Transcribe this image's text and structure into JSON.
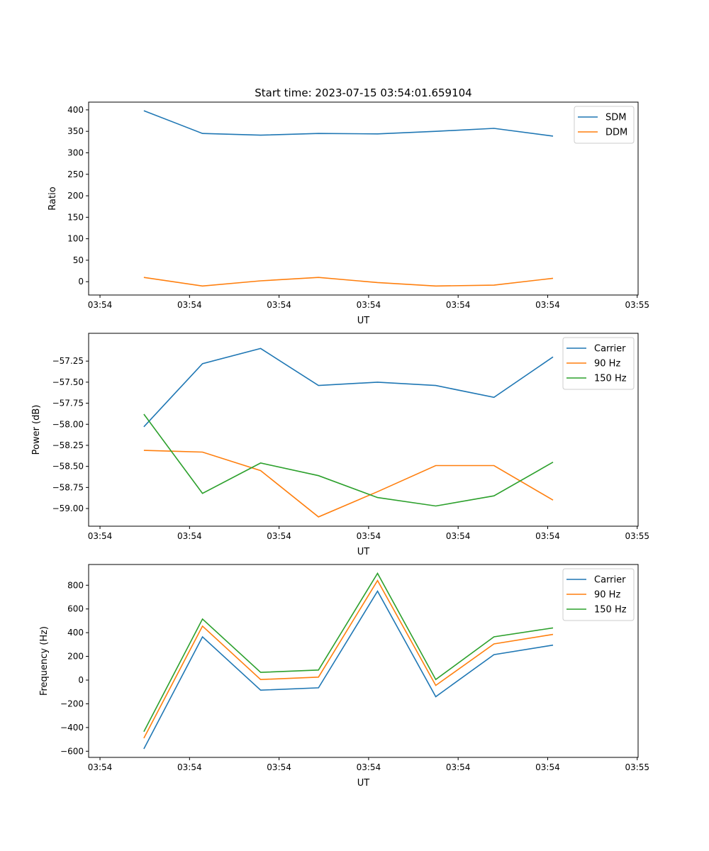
{
  "chart_data": [
    {
      "type": "line",
      "title": "Start time: 2023-07-15 03:54:01.659104",
      "xlabel": "UT",
      "ylabel": "Ratio",
      "x_unit": "seconds after 03:54:00",
      "xlim": [
        -1.27,
        60.1
      ],
      "ylim": [
        -31,
        418
      ],
      "xticks": [
        0,
        10,
        20,
        30,
        40,
        50,
        60
      ],
      "xtick_labels": [
        "03:54",
        "03:54",
        "03:54",
        "03:54",
        "03:54",
        "03:54",
        "03:55"
      ],
      "yticks": [
        0,
        50,
        100,
        150,
        200,
        250,
        300,
        350,
        400
      ],
      "ytick_labels": [
        "0",
        "50",
        "100",
        "150",
        "200",
        "250",
        "300",
        "350",
        "400"
      ],
      "legend_position": "top-right",
      "x": [
        4.9,
        11.45,
        17.94,
        24.4,
        31.0,
        37.5,
        44.0,
        50.6
      ],
      "series": [
        {
          "name": "SDM",
          "color": "#1f77b4",
          "values": [
            398,
            345,
            341,
            345,
            344,
            350,
            357,
            339
          ]
        },
        {
          "name": "DDM",
          "color": "#ff7f0e",
          "values": [
            10,
            -10,
            2,
            10,
            -2,
            -10,
            -8,
            8
          ]
        }
      ]
    },
    {
      "type": "line",
      "title": "",
      "xlabel": "UT",
      "ylabel": "Power (dB)",
      "x_unit": "seconds after 03:54:00",
      "xlim": [
        -1.27,
        60.1
      ],
      "ylim": [
        -59.21,
        -56.92
      ],
      "xticks": [
        0,
        10,
        20,
        30,
        40,
        50,
        60
      ],
      "xtick_labels": [
        "03:54",
        "03:54",
        "03:54",
        "03:54",
        "03:54",
        "03:54",
        "03:55"
      ],
      "yticks": [
        -59.0,
        -58.75,
        -58.5,
        -58.25,
        -58.0,
        -57.75,
        -57.5,
        -57.25
      ],
      "ytick_labels": [
        "−59.00",
        "−58.75",
        "−58.50",
        "−58.25",
        "−58.00",
        "−57.75",
        "−57.50",
        "−57.25"
      ],
      "legend_position": "top-right",
      "x": [
        4.9,
        11.45,
        17.94,
        24.4,
        31.0,
        37.5,
        44.0,
        50.6
      ],
      "series": [
        {
          "name": "Carrier",
          "color": "#1f77b4",
          "values": [
            -58.03,
            -57.28,
            -57.1,
            -57.54,
            -57.5,
            -57.54,
            -57.68,
            -57.2
          ]
        },
        {
          "name": "90 Hz",
          "color": "#ff7f0e",
          "values": [
            -58.31,
            -58.33,
            -58.55,
            -59.1,
            -58.8,
            -58.49,
            -58.49,
            -58.9
          ]
        },
        {
          "name": "150 Hz",
          "color": "#2ca02c",
          "values": [
            -57.88,
            -58.82,
            -58.46,
            -58.61,
            -58.87,
            -58.97,
            -58.85,
            -58.45
          ]
        }
      ]
    },
    {
      "type": "line",
      "title": "",
      "xlabel": "UT",
      "ylabel": "Frequency (Hz)",
      "x_unit": "seconds after 03:54:00",
      "xlim": [
        -1.27,
        60.1
      ],
      "ylim": [
        -652,
        975
      ],
      "xticks": [
        0,
        10,
        20,
        30,
        40,
        50,
        60
      ],
      "xtick_labels": [
        "03:54",
        "03:54",
        "03:54",
        "03:54",
        "03:54",
        "03:54",
        "03:55"
      ],
      "yticks": [
        -600,
        -400,
        -200,
        0,
        200,
        400,
        600,
        800
      ],
      "ytick_labels": [
        "−600",
        "−400",
        "−200",
        "0",
        "200",
        "400",
        "600",
        "800"
      ],
      "legend_position": "top-right",
      "x": [
        4.9,
        11.45,
        17.94,
        24.4,
        31.0,
        37.5,
        44.0,
        50.6
      ],
      "series": [
        {
          "name": "Carrier",
          "color": "#1f77b4",
          "values": [
            -580,
            365,
            -85,
            -65,
            750,
            -140,
            215,
            295
          ]
        },
        {
          "name": "90 Hz",
          "color": "#ff7f0e",
          "values": [
            -490,
            455,
            5,
            25,
            840,
            -45,
            305,
            385
          ]
        },
        {
          "name": "150 Hz",
          "color": "#2ca02c",
          "values": [
            -435,
            515,
            65,
            85,
            900,
            5,
            365,
            440
          ]
        }
      ]
    }
  ]
}
